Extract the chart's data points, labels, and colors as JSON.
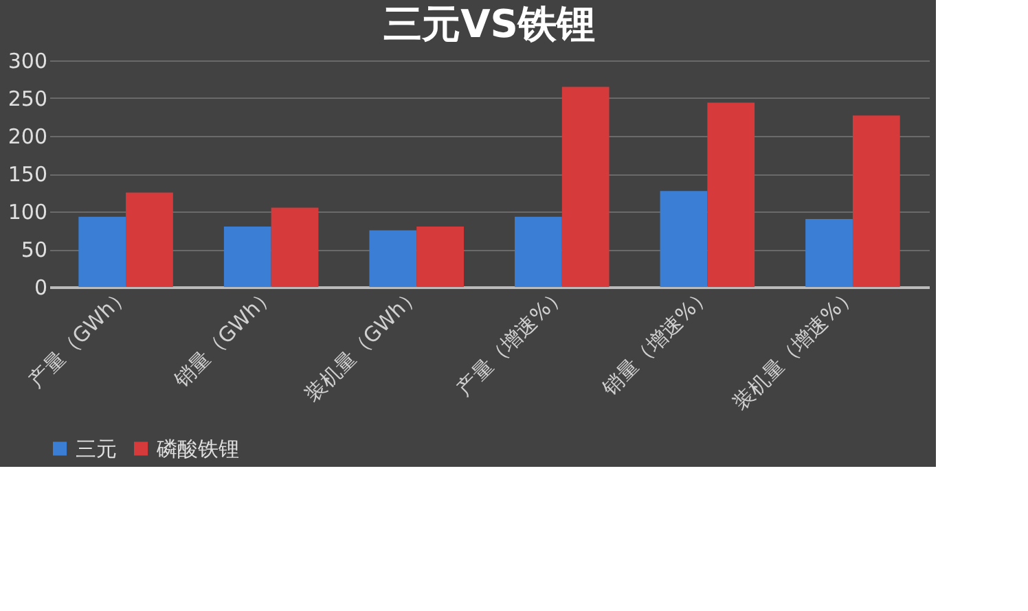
{
  "chart_data": {
    "type": "bar",
    "title": "三元VS铁锂",
    "categories": [
      "产量（GWh）",
      "销量（GWh）",
      "装机量（GWh）",
      "产量（增速%）",
      "销量（增速%）",
      "装机量（增速%）"
    ],
    "series": [
      {
        "name": "三元",
        "color": "#3a7fd5",
        "values": [
          93,
          80,
          75,
          93,
          127,
          90
        ]
      },
      {
        "name": "磷酸铁锂",
        "color": "#d63a3a",
        "values": [
          125,
          105,
          80,
          265,
          244,
          227
        ]
      }
    ],
    "ylim": [
      0,
      300
    ],
    "yticks": [
      0,
      50,
      100,
      150,
      200,
      250,
      300
    ],
    "grid": "y",
    "legend": "bottom"
  }
}
